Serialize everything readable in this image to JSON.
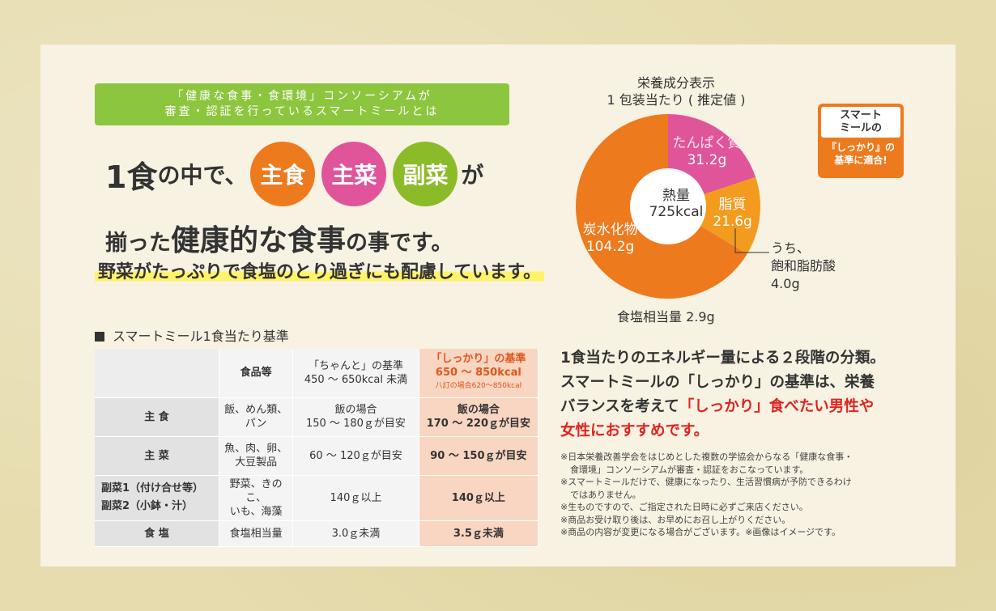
{
  "banner": {
    "line1": "「健康な食事・食環境」コンソーシアムが",
    "line2": "審査・認証を行っているスマートミールとは"
  },
  "headline": {
    "one": "1食",
    "middle": "の中で、",
    "circle1": "主食",
    "circle2": "主菜",
    "circle3": "副菜",
    "end": "が",
    "line2_a": "揃った",
    "line2_b": "健康的な食事",
    "line2_c": "の事です。"
  },
  "subline": "野菜がたっぷりで食塩のとり過ぎにも配慮しています。",
  "table": {
    "title": "スマートミール1食当たり基準",
    "col_food": "食品等",
    "col_a_line1": "「ちゃんと」の基準",
    "col_a_line2": "450 ～ 650kcal 未満",
    "col_b_line1": "「しっかり」の基準",
    "col_b_line2": "650 ～ 850kcal",
    "col_b_note": "八訂の場合620～850kcal",
    "rows": [
      {
        "name": "主 食",
        "name2": "",
        "food1": "飯、めん類、",
        "food2": "パン",
        "a1": "飯の場合",
        "a2": "150 ～ 180ｇが目安",
        "b1": "飯の場合",
        "b2": "170 ～ 220ｇが目安"
      },
      {
        "name": "主 菜",
        "name2": "",
        "food1": "魚、肉、卵、",
        "food2": "大豆製品",
        "a1": "60 ～ 120ｇが目安",
        "a2": "",
        "b1": "90 ～ 150ｇが目安",
        "b2": ""
      },
      {
        "name": "副菜1（付け合せ等）",
        "name2": "副菜2（小鉢・汁）",
        "food1": "野菜、きのこ、",
        "food2": "いも、海藻",
        "a1": "140ｇ以上",
        "a2": "",
        "b1": "140ｇ以上",
        "b2": ""
      },
      {
        "name": "食 塩",
        "name2": "",
        "food1": "食塩相当量",
        "food2": "",
        "a1": "3.0ｇ未満",
        "a2": "",
        "b1": "3.5ｇ未満",
        "b2": ""
      }
    ]
  },
  "nutrition": {
    "title_line1": "栄養成分表示",
    "title_line2": "1 包装当たり ( 推定値 )",
    "energy_label": "熱量",
    "energy_value": "725kcal",
    "salt": "食塩相当量 2.9g",
    "saturated_line1": "うち、",
    "saturated_line2": "飽和脂肪酸",
    "saturated_line3": "4.0g"
  },
  "chart_data": {
    "type": "pie",
    "slices": [
      {
        "label": "たんぱく質",
        "value": 31.2,
        "unit": "g",
        "color": "#e0559a"
      },
      {
        "label": "脂質",
        "value": 21.6,
        "unit": "g",
        "color": "#f39b1e"
      },
      {
        "label": "炭水化物",
        "value": 104.2,
        "unit": "g",
        "color": "#ee7a1e"
      }
    ],
    "center_label": "熱量 725kcal"
  },
  "badge": {
    "top1": "スマート",
    "top2": "ミールの",
    "bot1": "『しっかり』の",
    "bot2": "基準に適合!"
  },
  "description": {
    "line1": "1食当たりのエネルギー量による２段階の分類。",
    "line2": "スマートミールの「しっかり」の基準は、栄養",
    "line3_a": "バランスを考えて",
    "line3_b": "「しっかり」食べたい男性や",
    "line4": "女性におすすめです。"
  },
  "notes": {
    "n1a": "※日本栄養改善学会をはじめとした複数の学協会からなる「健康な食事・",
    "n1b": "食環境」コンソーシアムが審査・認証をおこなっています。",
    "n2a": "※スマートミールだけで、健康になったり、生活習慣病が予防できるわけ",
    "n2b": "ではありません。",
    "n3": "※生ものですので、ご指定された日時に必ずご来店ください。",
    "n4": "※商品お受け取り後は、お早めにお召し上がりください。",
    "n5": "※商品の内容が変更になる場合がございます。※画像はイメージです。"
  },
  "colors": {
    "green": "#8cc63f",
    "orange": "#ee7a1e",
    "pink": "#e0559a",
    "accent_red": "#e1231f"
  }
}
